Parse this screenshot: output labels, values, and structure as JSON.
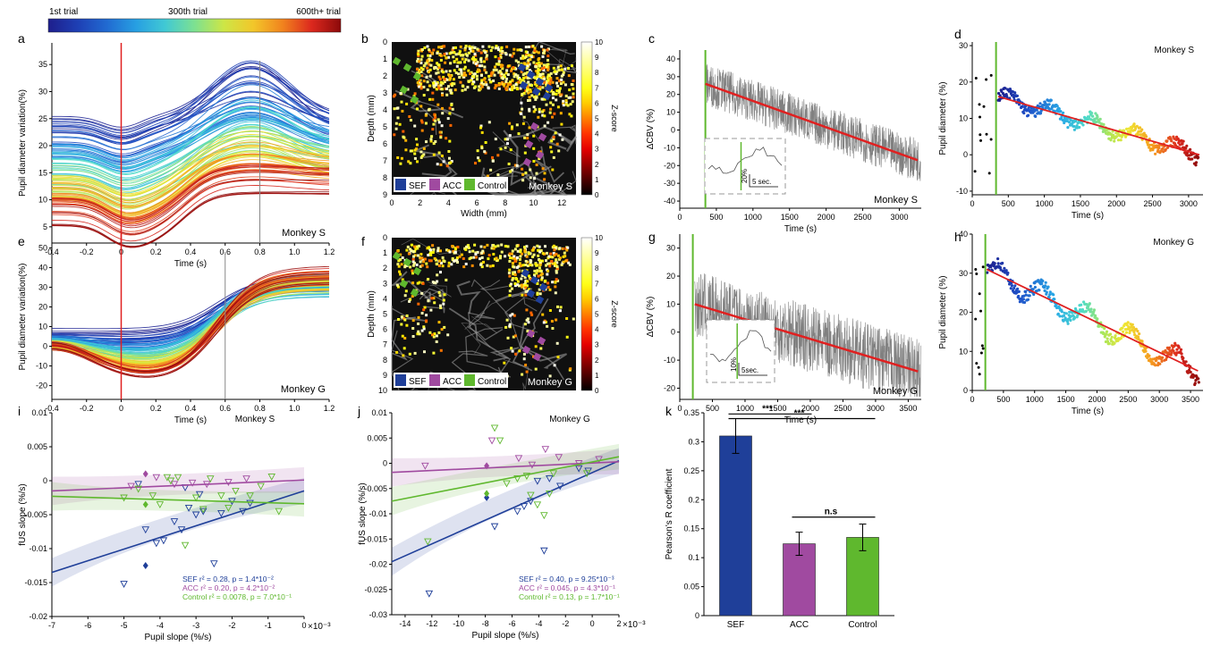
{
  "colorbar": {
    "labels": [
      "1st trial",
      "300th trial",
      "600th+ trial"
    ]
  },
  "colors": {
    "sef": "#1f3f99",
    "acc": "#a04aa0",
    "control": "#5fb82e",
    "fit_red": "#e02020",
    "trace_gray": "#808080"
  },
  "chart_data": [
    {
      "panel": "a",
      "type": "line",
      "xlabel": "Time (s)",
      "ylabel": "Pupil diameter variation(%)",
      "xlim": [
        -0.4,
        1.2
      ],
      "ylim": [
        2,
        39
      ],
      "xticks": [
        "-0.4",
        "-0.2",
        "0",
        "0.2",
        "0.4",
        "0.6",
        "0.8",
        "1.0",
        "1.2"
      ],
      "yticks": [
        "5",
        "10",
        "15",
        "20",
        "25",
        "30",
        "35"
      ],
      "annotation": "Monkey S",
      "vline_red": 0,
      "vline_gray": 0.8
    },
    {
      "panel": "b",
      "type": "heatmap",
      "xlabel": "Width (mm)",
      "ylabel": "Depth (mm)",
      "xticks": [
        "0",
        "2",
        "4",
        "6",
        "8",
        "10",
        "12"
      ],
      "yticks": [
        "0",
        "1",
        "2",
        "3",
        "4",
        "5",
        "6",
        "7",
        "8",
        "9"
      ],
      "colorbar_label": "Z-score",
      "colorbar_ticks": [
        "0",
        "1",
        "2",
        "3",
        "4",
        "5",
        "6",
        "7",
        "8",
        "9",
        "10"
      ],
      "legend": [
        "SEF",
        "ACC",
        "Control"
      ],
      "annotation": "Monkey S"
    },
    {
      "panel": "c",
      "type": "line",
      "xlabel": "Time (s)",
      "ylabel": "ΔCBV (%)",
      "xticks": [
        "0",
        "500",
        "1000",
        "1500",
        "2000",
        "2500",
        "3000"
      ],
      "yticks": [
        "-40",
        "-30",
        "-20",
        "-10",
        "0",
        "10",
        "20",
        "30",
        "40"
      ],
      "xlim": [
        0,
        3300
      ],
      "ylim": [
        -44,
        45
      ],
      "fit": {
        "x": [
          350,
          3250
        ],
        "y": [
          26,
          -17
        ]
      },
      "stim_x": 350,
      "inset_labels": [
        "20%",
        "5 sec."
      ],
      "annotation": "Monkey S"
    },
    {
      "panel": "d",
      "type": "scatter",
      "xlabel": "Time (s)",
      "ylabel": "Pupil diameter (%)",
      "xticks": [
        "0",
        "500",
        "1000",
        "1500",
        "2000",
        "2500",
        "3000"
      ],
      "yticks": [
        "-10",
        "0",
        "10",
        "20",
        "30"
      ],
      "xlim": [
        0,
        3200
      ],
      "ylim": [
        -11,
        31
      ],
      "fit": {
        "x": [
          360,
          3150
        ],
        "y": [
          16,
          0
        ]
      },
      "stim_x": 330,
      "annotation": "Monkey S"
    },
    {
      "panel": "e",
      "type": "line",
      "xlabel": "Time (s)",
      "ylabel": "Pupil diameter variation(%)",
      "xlim": [
        -0.4,
        1.2
      ],
      "ylim": [
        -27,
        57
      ],
      "xticks": [
        "-0.4",
        "-0.2",
        "0",
        "0.2",
        "0.4",
        "0.6",
        "0.8",
        "1.0",
        "1.2"
      ],
      "yticks": [
        "-20",
        "-10",
        "0",
        "10",
        "20",
        "30",
        "40",
        "50"
      ],
      "annotation": "Monkey G",
      "vline_red": 0,
      "vline_gray": 0.6
    },
    {
      "panel": "f",
      "type": "heatmap",
      "ylabel": "Depth (mm)",
      "yticks": [
        "0",
        "1",
        "2",
        "3",
        "4",
        "5",
        "6",
        "7",
        "8",
        "9",
        "10"
      ],
      "colorbar_label": "Z-score",
      "colorbar_ticks": [
        "0",
        "1",
        "2",
        "3",
        "4",
        "5",
        "6",
        "7",
        "8",
        "9",
        "10"
      ],
      "legend": [
        "SEF",
        "ACC",
        "Control"
      ],
      "annotation": "Monkey G"
    },
    {
      "panel": "g",
      "type": "line",
      "xlabel": "Time (s)",
      "ylabel": "ΔCBV (%)",
      "xticks": [
        "0",
        "500",
        "1000",
        "1500",
        "2000",
        "2500",
        "3000",
        "3500"
      ],
      "yticks": [
        "-20",
        "-10",
        "0",
        "10",
        "20",
        "30"
      ],
      "xlim": [
        0,
        3700
      ],
      "ylim": [
        -24,
        35
      ],
      "fit": {
        "x": [
          230,
          3650
        ],
        "y": [
          10,
          -14
        ]
      },
      "stim_x": 200,
      "inset_labels": [
        "10%",
        "5sec."
      ],
      "annotation": "Monkey G"
    },
    {
      "panel": "h",
      "type": "scatter",
      "xlabel": "Time (s)",
      "ylabel": "Pupil diameter (%)",
      "xticks": [
        "0",
        "500",
        "1000",
        "1500",
        "2000",
        "2500",
        "3000",
        "3500"
      ],
      "yticks": [
        "0",
        "10",
        "20",
        "30",
        "40"
      ],
      "xlim": [
        0,
        3700
      ],
      "ylim": [
        0,
        40
      ],
      "fit": {
        "x": [
          230,
          3620
        ],
        "y": [
          31,
          5
        ]
      },
      "stim_x": 210,
      "annotation": "Monkey G"
    },
    {
      "panel": "i",
      "type": "scatter",
      "xlabel": "Pupil slope (%/s)",
      "ylabel": "fUS slope (%/s)",
      "xticks": [
        "-7",
        "-6",
        "-5",
        "-4",
        "-3",
        "-2",
        "-1",
        "0"
      ],
      "x_exponent": "×10⁻³",
      "yticks": [
        "-0.02",
        "-0.015",
        "-0.01",
        "-0.005",
        "0",
        "0.005",
        "0.01"
      ],
      "xlim": [
        -7,
        0
      ],
      "ylim": [
        -0.02,
        0.01
      ],
      "annotation": "Monkey S",
      "series": [
        {
          "name": "SEF",
          "stat": "SEF r² = 0.28, p = 1.4*10⁻²",
          "fit": {
            "x": [
              -7,
              0
            ],
            "y": [
              -0.0135,
              -0.0015
            ]
          },
          "x": [
            -5.0,
            -4.4,
            -4.1,
            -3.9,
            -3.6,
            -3.4,
            -3.2,
            -3.0,
            -2.8,
            -2.5,
            -2.3,
            -2.0,
            -1.7,
            -1.5,
            -3.3,
            -2.9,
            -4.6
          ],
          "y": [
            -0.0152,
            -0.0072,
            -0.0092,
            -0.0088,
            -0.006,
            -0.0072,
            -0.004,
            -0.005,
            -0.0045,
            -0.0122,
            -0.0048,
            -0.003,
            -0.0045,
            -0.0033,
            -0.001,
            -0.002,
            -0.0005
          ],
          "marker_x": -4.4,
          "marker_y": -0.0125
        },
        {
          "name": "ACC",
          "stat": "ACC r² = 0.20, p = 4.2*10⁻²",
          "fit": {
            "x": [
              -7,
              0
            ],
            "y": [
              -0.0015,
              0.0001
            ]
          },
          "x": [
            -4.8,
            -4.1,
            -3.6,
            -3.1,
            -2.7,
            -2.1,
            -1.6
          ],
          "y": [
            -0.0008,
            0.0005,
            -0.0005,
            -0.0003,
            -0.0005,
            -0.0002,
            0.0003
          ],
          "marker_x": -4.4,
          "marker_y": 0.001
        },
        {
          "name": "Control",
          "stat": "Control r² = 0.0078, p = 7.0*10⁻¹",
          "fit": {
            "x": [
              -7,
              0
            ],
            "y": [
              -0.0023,
              -0.0034
            ]
          },
          "x": [
            -5.0,
            -4.6,
            -4.2,
            -3.8,
            -3.5,
            -3.3,
            -3.0,
            -2.8,
            -2.6,
            -2.3,
            -2.1,
            -1.9,
            -1.5,
            -1.2,
            -0.9,
            -0.7,
            -4.0,
            -3.7
          ],
          "y": [
            -0.0025,
            -0.0012,
            -0.0022,
            0.0005,
            0.0005,
            -0.0095,
            -0.0025,
            -0.0042,
            0.0003,
            -0.0022,
            -0.004,
            -0.0015,
            -0.0022,
            -0.0008,
            0.0006,
            -0.0045,
            -0.0035,
            0.0
          ],
          "marker_x": -4.4,
          "marker_y": -0.0035
        }
      ]
    },
    {
      "panel": "j",
      "type": "scatter",
      "xlabel": "Pupil slope (%/s)",
      "ylabel": "fUS slope (%/s)",
      "xticks": [
        "-14",
        "-12",
        "-10",
        "-8",
        "-6",
        "-4",
        "-2",
        "0",
        "2"
      ],
      "x_exponent": "×10⁻³",
      "yticks": [
        "-0.03",
        "-0.025",
        "-0.02",
        "-0.015",
        "-0.01",
        "-0.005",
        "0",
        "0.005",
        "0.01"
      ],
      "xlim": [
        -15,
        2
      ],
      "ylim": [
        -0.03,
        0.01
      ],
      "annotation": "Monkey G",
      "series": [
        {
          "name": "SEF",
          "stat": "SEF r² = 0.40, p = 9.25*10⁻³",
          "fit": {
            "x": [
              -15,
              2
            ],
            "y": [
              -0.0195,
              0.0005
            ]
          },
          "x": [
            -12.2,
            -7.3,
            -5.6,
            -5.1,
            -4.6,
            -4.1,
            -3.6,
            -3.2,
            -2.4,
            -1.0,
            -0.3
          ],
          "y": [
            -0.0258,
            -0.0125,
            -0.0095,
            -0.0085,
            -0.0075,
            -0.0035,
            -0.0173,
            -0.003,
            -0.0045,
            -0.001,
            -0.0015
          ],
          "marker_x": -7.9,
          "marker_y": -0.0068
        },
        {
          "name": "ACC",
          "stat": "ACC r² = 0.045, p = 4.3*10⁻¹",
          "fit": {
            "x": [
              -15,
              2
            ],
            "y": [
              -0.0018,
              0.0003
            ]
          },
          "x": [
            -12.5,
            -7.5,
            -5.5,
            -4.5,
            -3.5,
            -2.5,
            -1.0,
            0.5
          ],
          "y": [
            -0.0005,
            0.0045,
            0.001,
            -0.0003,
            0.0028,
            0.0012,
            0.0,
            0.0008
          ],
          "marker_x": -7.9,
          "marker_y": -0.0005
        },
        {
          "name": "Control",
          "stat": "Control r² = 0.13, p = 1.7*10⁻¹",
          "fit": {
            "x": [
              -15,
              2
            ],
            "y": [
              -0.0075,
              0.0013
            ]
          },
          "x": [
            -12.3,
            -7.3,
            -6.9,
            -6.4,
            -5.6,
            -4.9,
            -4.6,
            -4.1,
            -3.6,
            -3.2,
            -2.9,
            -0.4
          ],
          "y": [
            -0.0155,
            0.007,
            0.0045,
            -0.004,
            -0.003,
            -0.0025,
            -0.0063,
            -0.0082,
            -0.0103,
            -0.006,
            -0.002,
            -0.002
          ],
          "marker_x": -7.9,
          "marker_y": -0.006
        }
      ]
    },
    {
      "panel": "k",
      "type": "bar",
      "ylabel": "Pearson's R coefficient",
      "categories": [
        "SEF",
        "ACC",
        "Control"
      ],
      "values": [
        0.31,
        0.124,
        0.135
      ],
      "errors": [
        0.03,
        0.02,
        0.023
      ],
      "yticks": [
        "0",
        "0.05",
        "0.1",
        "0.15",
        "0.2",
        "0.25",
        "0.3",
        "0.35"
      ],
      "ylim": [
        0,
        0.35
      ],
      "significance": [
        {
          "from": "SEF",
          "to": "ACC",
          "label": "***"
        },
        {
          "from": "SEF",
          "to": "Control",
          "label": "***"
        },
        {
          "from": "ACC",
          "to": "Control",
          "label": "n.s"
        }
      ]
    }
  ]
}
